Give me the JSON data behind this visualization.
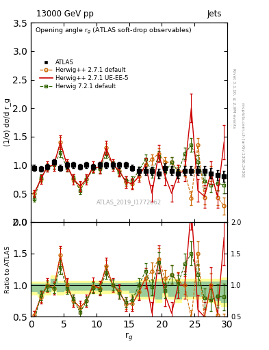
{
  "title_top": "13000 GeV pp",
  "title_right": "Jets",
  "plot_title": "Opening angle r$_g$ (ATLAS soft-drop observables)",
  "ylabel_main": "(1/σ) dσ/d r_g",
  "ylabel_ratio": "Ratio to ATLAS",
  "xlabel": "r$_g$",
  "watermark": "ATLAS_2019_I1772062",
  "right_label1": "Rivet 3.1.10, ≥ 2.9M events",
  "right_label2": "mcplots.cern.ch [arXiv:1306.3436]",
  "xlim": [
    0,
    30
  ],
  "ylim_main": [
    0,
    3.5
  ],
  "ylim_ratio": [
    0.5,
    2.0
  ],
  "atlas_x": [
    0.5,
    1.5,
    2.5,
    3.5,
    4.5,
    5.5,
    6.5,
    7.5,
    8.5,
    9.5,
    10.5,
    11.5,
    12.5,
    13.5,
    14.5,
    15.5,
    16.5,
    17.5,
    18.5,
    19.5,
    20.5,
    21.5,
    22.5,
    23.5,
    24.5,
    25.5,
    26.5,
    27.5,
    28.5,
    29.5
  ],
  "atlas_y": [
    0.95,
    0.93,
    0.97,
    1.05,
    0.95,
    1.0,
    1.0,
    0.97,
    1.0,
    0.97,
    1.0,
    1.0,
    1.0,
    1.0,
    1.0,
    0.95,
    0.9,
    0.9,
    0.9,
    0.85,
    0.95,
    0.9,
    0.85,
    0.9,
    0.9,
    0.9,
    0.9,
    0.85,
    0.82,
    0.8
  ],
  "atlas_yerr": [
    0.05,
    0.05,
    0.05,
    0.05,
    0.05,
    0.05,
    0.05,
    0.05,
    0.05,
    0.05,
    0.05,
    0.05,
    0.05,
    0.05,
    0.05,
    0.05,
    0.07,
    0.07,
    0.07,
    0.08,
    0.08,
    0.08,
    0.08,
    0.08,
    0.08,
    0.08,
    0.08,
    0.09,
    0.09,
    0.1
  ],
  "hw271_x": [
    0.5,
    1.5,
    2.5,
    3.5,
    4.5,
    5.5,
    6.5,
    7.5,
    8.5,
    9.5,
    10.5,
    11.5,
    12.5,
    13.5,
    14.5,
    15.5,
    16.5,
    17.5,
    18.5,
    19.5,
    20.5,
    21.5,
    22.5,
    23.5,
    24.5,
    25.5,
    26.5,
    27.5,
    28.5,
    29.5
  ],
  "hw271_y": [
    0.5,
    0.75,
    0.97,
    1.0,
    1.4,
    1.0,
    0.75,
    0.63,
    0.75,
    0.95,
    0.95,
    1.3,
    1.0,
    0.9,
    0.7,
    0.67,
    0.8,
    1.0,
    1.1,
    1.2,
    1.05,
    1.05,
    0.9,
    0.9,
    0.42,
    1.35,
    0.43,
    0.85,
    0.43,
    0.28
  ],
  "hw271_yerr": [
    0.05,
    0.06,
    0.06,
    0.07,
    0.08,
    0.07,
    0.06,
    0.06,
    0.06,
    0.07,
    0.07,
    0.08,
    0.07,
    0.07,
    0.07,
    0.07,
    0.07,
    0.08,
    0.09,
    0.09,
    0.09,
    0.09,
    0.09,
    0.1,
    0.12,
    0.12,
    0.12,
    0.13,
    0.13,
    0.15
  ],
  "hw271ue_x": [
    0.5,
    1.5,
    2.5,
    3.5,
    4.5,
    5.5,
    6.5,
    7.5,
    8.5,
    9.5,
    10.5,
    11.5,
    12.5,
    13.5,
    14.5,
    15.5,
    16.5,
    17.5,
    18.5,
    19.5,
    20.5,
    21.5,
    22.5,
    23.5,
    24.5,
    25.5,
    26.5,
    27.5,
    28.5,
    29.5
  ],
  "hw271ue_y": [
    0.5,
    0.75,
    0.97,
    1.0,
    1.4,
    1.0,
    0.75,
    0.63,
    0.75,
    0.97,
    0.95,
    1.3,
    1.0,
    0.9,
    0.7,
    0.67,
    0.8,
    1.0,
    0.5,
    1.2,
    0.8,
    0.5,
    0.85,
    0.9,
    2.0,
    0.55,
    0.45,
    0.87,
    0.45,
    1.4
  ],
  "hw271ue_yerr": [
    0.06,
    0.08,
    0.09,
    0.1,
    0.12,
    0.1,
    0.09,
    0.09,
    0.09,
    0.1,
    0.1,
    0.12,
    0.1,
    0.1,
    0.1,
    0.1,
    0.1,
    0.12,
    0.15,
    0.15,
    0.15,
    0.15,
    0.15,
    0.18,
    0.25,
    0.2,
    0.2,
    0.2,
    0.2,
    0.3
  ],
  "hw721_x": [
    0.5,
    1.5,
    2.5,
    3.5,
    4.5,
    5.5,
    6.5,
    7.5,
    8.5,
    9.5,
    10.5,
    11.5,
    12.5,
    13.5,
    14.5,
    15.5,
    16.5,
    17.5,
    18.5,
    19.5,
    20.5,
    21.5,
    22.5,
    23.5,
    24.5,
    25.5,
    26.5,
    27.5,
    28.5,
    29.5
  ],
  "hw721_y": [
    0.4,
    0.78,
    0.95,
    1.0,
    1.22,
    0.95,
    0.78,
    0.55,
    0.75,
    0.93,
    0.93,
    1.2,
    1.0,
    0.87,
    0.73,
    0.73,
    0.9,
    1.1,
    0.87,
    1.15,
    0.87,
    1.05,
    0.87,
    1.2,
    1.35,
    1.05,
    0.72,
    0.65,
    0.68,
    0.65
  ],
  "hw721_yerr": [
    0.05,
    0.06,
    0.06,
    0.07,
    0.08,
    0.07,
    0.06,
    0.06,
    0.06,
    0.07,
    0.07,
    0.08,
    0.07,
    0.07,
    0.07,
    0.07,
    0.07,
    0.08,
    0.09,
    0.09,
    0.09,
    0.09,
    0.09,
    0.1,
    0.12,
    0.12,
    0.12,
    0.13,
    0.13,
    0.15
  ],
  "band_x": [
    0,
    1,
    2,
    3,
    4,
    5,
    6,
    7,
    8,
    9,
    10,
    11,
    12,
    13,
    14,
    15,
    16,
    17,
    18,
    19,
    20,
    21,
    22,
    23,
    24,
    25,
    26,
    27,
    28,
    29,
    30
  ],
  "yellow_lo": [
    0.85,
    0.82,
    0.85,
    0.9,
    0.85,
    0.87,
    0.87,
    0.87,
    0.87,
    0.87,
    0.87,
    0.87,
    0.87,
    0.87,
    0.87,
    0.82,
    0.78,
    0.78,
    0.78,
    0.73,
    0.82,
    0.78,
    0.73,
    0.78,
    0.78,
    0.78,
    0.78,
    0.73,
    0.7,
    0.67,
    0.67
  ],
  "yellow_hi": [
    1.05,
    1.05,
    1.05,
    1.15,
    1.07,
    1.07,
    1.07,
    1.07,
    1.07,
    1.07,
    1.07,
    1.07,
    1.07,
    1.07,
    1.07,
    1.07,
    1.08,
    1.08,
    1.08,
    1.1,
    1.1,
    1.1,
    1.1,
    1.1,
    1.1,
    1.1,
    1.1,
    1.1,
    1.1,
    1.12,
    1.12
  ],
  "green_lo": [
    0.9,
    0.87,
    0.9,
    0.95,
    0.9,
    0.93,
    0.93,
    0.93,
    0.93,
    0.93,
    0.93,
    0.93,
    0.93,
    0.93,
    0.93,
    0.88,
    0.83,
    0.83,
    0.83,
    0.79,
    0.88,
    0.83,
    0.79,
    0.83,
    0.83,
    0.83,
    0.83,
    0.79,
    0.76,
    0.73,
    0.73
  ],
  "green_hi": [
    1.02,
    1.02,
    1.02,
    1.1,
    1.03,
    1.03,
    1.03,
    1.03,
    1.03,
    1.03,
    1.03,
    1.03,
    1.03,
    1.03,
    1.03,
    1.03,
    1.04,
    1.04,
    1.04,
    1.06,
    1.06,
    1.06,
    1.06,
    1.06,
    1.06,
    1.06,
    1.06,
    1.06,
    1.06,
    1.08,
    1.08
  ],
  "color_hw271": "#cc6600",
  "color_hw271ue": "#cc0000",
  "color_hw721": "#336600",
  "color_atlas": "#000000",
  "color_yellow": "#ffff99",
  "color_green": "#99cc99"
}
